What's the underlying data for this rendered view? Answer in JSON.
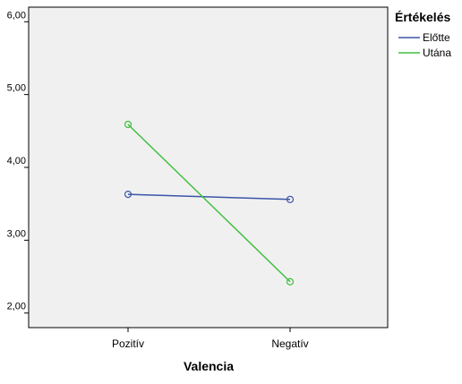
{
  "chart_data": {
    "type": "line",
    "title": "",
    "xlabel": "Valencia",
    "ylabel": "",
    "categories": [
      "Pozitív",
      "Negatív"
    ],
    "ylim": [
      1.8,
      6.2
    ],
    "yticks": [
      {
        "value": 2,
        "label": "2,00"
      },
      {
        "value": 3,
        "label": "3,00"
      },
      {
        "value": 4,
        "label": "4,00"
      },
      {
        "value": 5,
        "label": "5,00"
      },
      {
        "value": 6,
        "label": "6,00"
      }
    ],
    "legend": {
      "title": "Értékelés",
      "position": "right"
    },
    "grid": false,
    "plot_background": "#f0f0f0",
    "series": [
      {
        "name": "Előtte",
        "color": "#3a55a8",
        "values": [
          3.63,
          3.56
        ],
        "marker": "circle"
      },
      {
        "name": "Utána",
        "color": "#3fbf3f",
        "values": [
          4.59,
          2.43
        ],
        "marker": "circle"
      }
    ]
  }
}
